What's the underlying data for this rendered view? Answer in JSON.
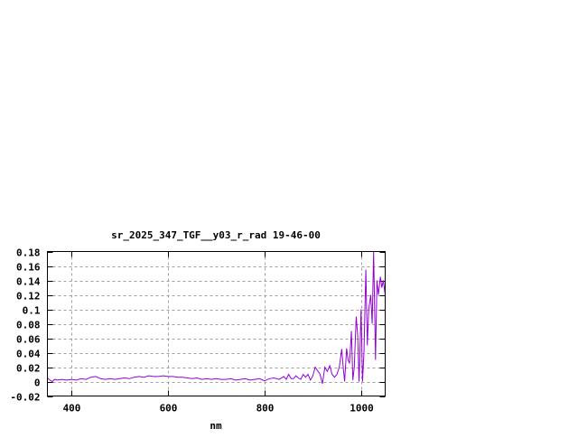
{
  "chart_data": {
    "type": "line",
    "title": "sr_2025_347_TGF__y03_r_rad 19-46-00",
    "xlabel": "nm",
    "ylabel": "",
    "xlim": [
      350,
      1050
    ],
    "ylim": [
      -0.02,
      0.18
    ],
    "xticks": [
      400,
      600,
      800,
      1000
    ],
    "yticks": [
      -0.02,
      0,
      0.02,
      0.04,
      0.06,
      0.08,
      0.1,
      0.12,
      0.14,
      0.16,
      0.18
    ],
    "ytick_labels": [
      "-0.02",
      "0",
      "0.02",
      "0.04",
      "0.06",
      "0.08",
      "0.1",
      "0.12",
      "0.14",
      "0.16",
      "0.18"
    ],
    "grid": true,
    "line_color": "#9400d3",
    "series": [
      {
        "x": [
          350,
          355,
          360,
          365,
          370,
          380,
          390,
          400,
          410,
          420,
          430,
          440,
          450,
          460,
          470,
          480,
          490,
          500,
          510,
          520,
          530,
          540,
          550,
          560,
          570,
          580,
          590,
          600,
          610,
          620,
          630,
          640,
          650,
          660,
          670,
          680,
          690,
          700,
          710,
          720,
          730,
          740,
          750,
          760,
          770,
          780,
          790,
          800,
          810,
          820,
          830,
          840,
          845,
          850,
          855,
          860,
          865,
          870,
          875,
          880,
          885,
          890,
          895,
          900,
          905,
          910,
          915,
          920,
          925,
          930,
          935,
          940,
          945,
          950,
          955,
          960,
          963,
          966,
          970,
          973,
          976,
          980,
          983,
          986,
          990,
          993,
          996,
          1000,
          1003,
          1006,
          1010,
          1013,
          1016,
          1020,
          1023,
          1026,
          1030,
          1033,
          1036,
          1040,
          1043,
          1046,
          1050
        ],
        "y": [
          0.005,
          0.002,
          0.0,
          0.003,
          0.002,
          0.003,
          0.002,
          0.003,
          0.002,
          0.004,
          0.003,
          0.006,
          0.007,
          0.004,
          0.003,
          0.004,
          0.003,
          0.004,
          0.005,
          0.004,
          0.006,
          0.007,
          0.006,
          0.008,
          0.007,
          0.007,
          0.008,
          0.007,
          0.007,
          0.006,
          0.006,
          0.005,
          0.004,
          0.005,
          0.003,
          0.004,
          0.003,
          0.004,
          0.003,
          0.003,
          0.004,
          0.002,
          0.003,
          0.004,
          0.002,
          0.003,
          0.004,
          0.001,
          0.004,
          0.005,
          0.003,
          0.007,
          0.003,
          0.01,
          0.004,
          0.004,
          0.008,
          0.005,
          0.003,
          0.01,
          0.006,
          0.01,
          0.002,
          0.008,
          0.02,
          0.015,
          0.01,
          -0.003,
          0.02,
          0.014,
          0.022,
          0.01,
          0.006,
          0.01,
          0.02,
          0.045,
          0.02,
          0.0,
          0.046,
          0.03,
          0.025,
          0.07,
          0.002,
          0.02,
          0.09,
          0.065,
          0.0,
          0.1,
          0.0,
          0.04,
          0.155,
          0.05,
          0.1,
          0.12,
          0.08,
          0.18,
          0.03,
          0.14,
          0.12,
          0.145,
          0.13,
          0.14,
          0.12
        ]
      }
    ]
  }
}
